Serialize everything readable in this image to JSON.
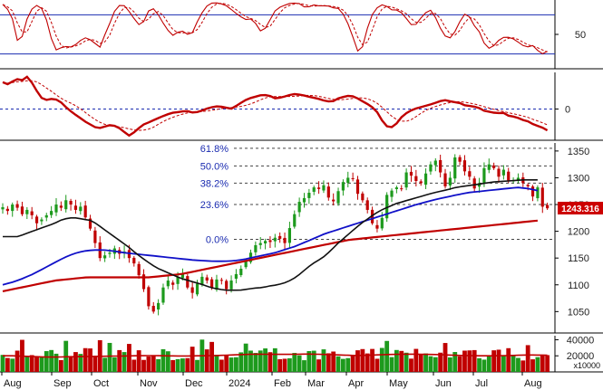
{
  "chart_data": [
    {
      "type": "line",
      "panel": "stochastic",
      "ylim": [
        0,
        100
      ],
      "y_ticks": [
        "50"
      ],
      "y_tick_values": [
        50
      ],
      "reference_levels": [
        80,
        20
      ],
      "colors": {
        "k": "#c00000",
        "d": "#c00000",
        "ref": "#1a2bb0"
      },
      "k_values": [
        96,
        88,
        72,
        35,
        50,
        82,
        92,
        96,
        85,
        60,
        25,
        28,
        32,
        30,
        33,
        40,
        45,
        42,
        36,
        30,
        52,
        70,
        90,
        96,
        93,
        80,
        70,
        60,
        82,
        92,
        84,
        70,
        58,
        48,
        53,
        55,
        50,
        53,
        72,
        86,
        96,
        99,
        98,
        96,
        92,
        84,
        80,
        72,
        75,
        70,
        55,
        58,
        72,
        86,
        92,
        95,
        98,
        98,
        97,
        90,
        94,
        96,
        92,
        96,
        90,
        92,
        85,
        70,
        50,
        24,
        30,
        60,
        82,
        92,
        96,
        92,
        86,
        88,
        80,
        70,
        60,
        72,
        80,
        90,
        80,
        62,
        48,
        44,
        54,
        70,
        82,
        76,
        60,
        52,
        30,
        28,
        36,
        45,
        46,
        45,
        40,
        34,
        30,
        34,
        26,
        20,
        24
      ]
    },
    {
      "type": "line",
      "panel": "macd",
      "y_ticks": [
        "0"
      ],
      "y_tick_values": [
        0
      ],
      "colors": {
        "macd": "#c00000",
        "signal": "#c00000",
        "zero": "#1a2bb0"
      },
      "macd_values": [
        75,
        68,
        85,
        80,
        92,
        62,
        32,
        25,
        30,
        22,
        5,
        -10,
        -22,
        -35,
        -45,
        -55,
        -50,
        -45,
        -48,
        -62,
        -75,
        -62,
        -45,
        -38,
        -30,
        -22,
        -15,
        -10,
        -8,
        -5,
        -10,
        -8,
        0,
        5,
        8,
        5,
        0,
        10,
        22,
        30,
        35,
        40,
        38,
        30,
        32,
        38,
        42,
        40,
        36,
        32,
        28,
        22,
        20,
        30,
        35,
        38,
        30,
        20,
        10,
        -5,
        -35,
        -55,
        -45,
        -22,
        -8,
        0,
        5,
        10,
        15,
        22,
        25,
        20,
        18,
        10,
        8,
        5,
        -5,
        -8,
        -12,
        -10,
        -20,
        -22,
        -30,
        -35,
        -45,
        -50,
        -60
      ]
    },
    {
      "type": "candlestick",
      "panel": "price",
      "ylim": [
        1010,
        1365
      ],
      "y_ticks": [
        "1350",
        "1300",
        "1250",
        "1200",
        "1150",
        "1100",
        "1050"
      ],
      "y_tick_values": [
        1350,
        1300,
        1250,
        1200,
        1150,
        1100,
        1050
      ],
      "fibonacci": [
        {
          "label": "61.8%",
          "value": 1355
        },
        {
          "label": "50.0%",
          "value": 1322
        },
        {
          "label": "38.2%",
          "value": 1290
        },
        {
          "label": "23.6%",
          "value": 1250
        },
        {
          "label": "0.0%",
          "value": 1185
        }
      ],
      "last_price_label": "1243.316",
      "colors": {
        "up": "#1d9a1d",
        "down": "#c00000",
        "ma_short": "#111111",
        "ma_mid": "#1010c8",
        "ma_long": "#c00000",
        "fib": "#1a2bb0",
        "last_price_bg": "#cc0000"
      },
      "closes": [
        1245,
        1238,
        1250,
        1244,
        1232,
        1240,
        1230,
        1215,
        1222,
        1230,
        1238,
        1250,
        1244,
        1258,
        1250,
        1240,
        1246,
        1226,
        1205,
        1178,
        1150,
        1155,
        1160,
        1168,
        1158,
        1162,
        1150,
        1140,
        1118,
        1092,
        1060,
        1050,
        1066,
        1095,
        1108,
        1100,
        1115,
        1120,
        1095,
        1085,
        1102,
        1115,
        1108,
        1095,
        1110,
        1108,
        1092,
        1108,
        1120,
        1130,
        1145,
        1160,
        1174,
        1178,
        1182,
        1180,
        1188,
        1186,
        1178,
        1206,
        1232,
        1255,
        1262,
        1272,
        1282,
        1279,
        1286,
        1263,
        1256,
        1275,
        1292,
        1300,
        1298,
        1270,
        1258,
        1240,
        1215,
        1205,
        1225,
        1268,
        1276,
        1282,
        1280,
        1310,
        1304,
        1294,
        1290,
        1308,
        1325,
        1332,
        1310,
        1284,
        1300,
        1338,
        1330,
        1312,
        1302,
        1280,
        1290,
        1318,
        1325,
        1318,
        1302,
        1315,
        1295,
        1295,
        1300,
        1290,
        1284,
        1265,
        1282,
        1246,
        1243
      ],
      "ma_short": [
        1190,
        1190,
        1190,
        1195,
        1200,
        1205,
        1210,
        1215,
        1222,
        1225,
        1225,
        1222,
        1220,
        1210,
        1200,
        1190,
        1180,
        1170,
        1158,
        1148,
        1138,
        1130,
        1124,
        1118,
        1112,
        1108,
        1104,
        1100,
        1095,
        1092,
        1090,
        1090,
        1090,
        1092,
        1094,
        1095,
        1098,
        1100,
        1104,
        1110,
        1120,
        1132,
        1142,
        1150,
        1162,
        1176,
        1188,
        1200,
        1212,
        1222,
        1232,
        1240,
        1246,
        1252,
        1256,
        1260,
        1264,
        1268,
        1272,
        1275,
        1278,
        1282,
        1284,
        1286,
        1288,
        1290,
        1292,
        1293,
        1294,
        1295,
        1296,
        1296,
        1296
      ],
      "ma_mid": [
        1100,
        1105,
        1112,
        1120,
        1130,
        1140,
        1150,
        1158,
        1163,
        1165,
        1165,
        1163,
        1160,
        1158,
        1156,
        1154,
        1152,
        1150,
        1148,
        1146,
        1145,
        1144,
        1144,
        1145,
        1148,
        1152,
        1156,
        1160,
        1166,
        1172,
        1180,
        1188,
        1196,
        1202,
        1208,
        1214,
        1220,
        1226,
        1232,
        1238,
        1244,
        1250,
        1255,
        1260,
        1264,
        1268,
        1272,
        1274,
        1276,
        1278,
        1280,
        1282,
        1280,
        1276
      ],
      "ma_long": [
        1088,
        1092,
        1096,
        1100,
        1104,
        1108,
        1110,
        1112,
        1114,
        1114,
        1114,
        1114,
        1114,
        1114,
        1114,
        1116,
        1118,
        1120,
        1124,
        1128,
        1132,
        1136,
        1140,
        1144,
        1148,
        1152,
        1156,
        1160,
        1164,
        1168,
        1172,
        1176,
        1180,
        1184,
        1186,
        1188,
        1190,
        1192,
        1194,
        1196,
        1198,
        1200,
        1202,
        1204,
        1206,
        1208,
        1210,
        1212,
        1214,
        1216,
        1218,
        1220
      ]
    },
    {
      "type": "bar",
      "panel": "volume",
      "ylim": [
        0,
        45000
      ],
      "y_ticks": [
        "40000",
        "20000"
      ],
      "y_tick_values": [
        40000,
        20000
      ],
      "unit_label": "x10000",
      "colors": {
        "up": "#1d9a1d",
        "down": "#c00000",
        "ma": "#c00000"
      },
      "volume_ma": [
        20000,
        20000,
        19500,
        19000,
        18500,
        18500,
        18800,
        19000,
        19200,
        19400,
        19600,
        19800,
        20000,
        20200,
        20200,
        20000,
        19800,
        19800,
        20000,
        20200,
        20500,
        21000,
        21500,
        22000,
        22000,
        21800,
        21800,
        22000,
        22200,
        22000,
        21500,
        21000,
        20500,
        20500,
        21000,
        21500,
        21800,
        22000,
        22000,
        21800,
        21500,
        21000,
        20500,
        20200,
        20000,
        20000,
        20200,
        20500,
        21000,
        21000,
        20800
      ]
    }
  ],
  "x_axis": {
    "months": [
      "Aug",
      "Sep",
      "Oct",
      "Nov",
      "Dec",
      "2024",
      "Feb",
      "Mar",
      "Apr",
      "May",
      "Jun",
      "Jul",
      "Aug"
    ]
  }
}
